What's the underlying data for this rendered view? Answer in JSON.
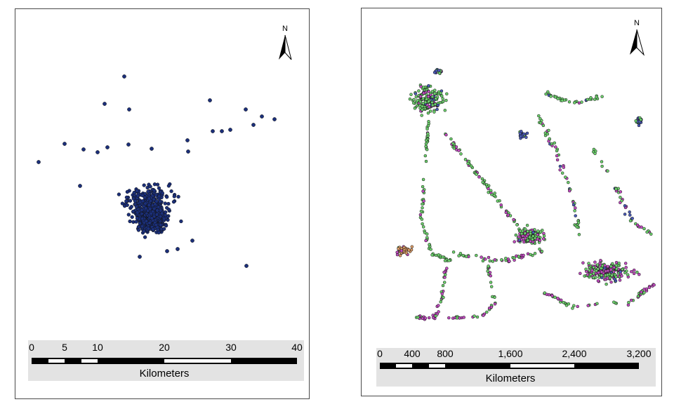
{
  "maps": [
    {
      "north_label": "N",
      "scale_labels": [
        "0",
        "5",
        "10",
        "20",
        "30",
        "40"
      ],
      "scale_unit": "Kilometers",
      "point_colors": [
        "#1b2f7a"
      ]
    },
    {
      "north_label": "N",
      "scale_labels": [
        "0",
        "400",
        "800",
        "1,600",
        "2,400",
        "3,200"
      ],
      "scale_unit": "Kilometers",
      "point_colors": [
        "#6ccf6c",
        "#c04bbf",
        "#d99a66",
        "#4a5ab8"
      ]
    }
  ]
}
